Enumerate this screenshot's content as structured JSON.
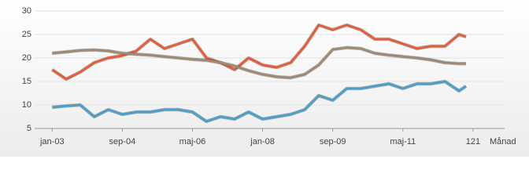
{
  "chart_data": {
    "type": "line",
    "x_label": "Månad",
    "x": [
      1,
      5,
      9,
      13,
      17,
      21,
      25,
      29,
      33,
      37,
      41,
      45,
      49,
      53,
      57,
      61,
      65,
      69,
      73,
      77,
      81,
      85,
      89,
      93,
      97,
      101,
      105,
      109,
      113,
      117,
      119
    ],
    "series": [
      {
        "color": "#e25f3d",
        "values": [
          17.5,
          15.5,
          17,
          19,
          20,
          20.5,
          21.5,
          24,
          22,
          23,
          24,
          20,
          19,
          17.5,
          20,
          18.5,
          18,
          19,
          22.5,
          27,
          26,
          27,
          26,
          24,
          24,
          23,
          22,
          22.5,
          22.5,
          25,
          24.5
        ]
      },
      {
        "color": "#a08a74",
        "values": [
          21,
          21.3,
          21.6,
          21.7,
          21.5,
          21,
          20.8,
          20.6,
          20.3,
          20,
          19.7,
          19.5,
          19,
          18.3,
          17.3,
          16.5,
          16,
          15.8,
          16.5,
          18.5,
          21.8,
          22.2,
          22,
          21,
          20.6,
          20.3,
          20,
          19.6,
          19,
          18.8,
          18.8
        ]
      },
      {
        "color": "#4d9ec8",
        "values": [
          9.5,
          9.8,
          10,
          7.5,
          9,
          8,
          8.5,
          8.5,
          9,
          9,
          8.5,
          6.5,
          7.5,
          7,
          8.5,
          7,
          7.5,
          8,
          9,
          12,
          11,
          13.5,
          13.5,
          14,
          14.5,
          13.5,
          14.5,
          14.5,
          15,
          13,
          14
        ]
      }
    ],
    "xlim": [
      -4,
      130
    ],
    "xticks": [
      {
        "value": 1,
        "label": "jan-03"
      },
      {
        "value": 21,
        "label": "sep-04"
      },
      {
        "value": 41,
        "label": "maj-06"
      },
      {
        "value": 61,
        "label": "jan-08"
      },
      {
        "value": 81,
        "label": "sep-09"
      },
      {
        "value": 101,
        "label": "maj-11"
      },
      121
    ],
    "ylim": [
      5,
      30
    ],
    "yticks": [
      5,
      10,
      15,
      20,
      25,
      30
    ],
    "grid": true
  }
}
